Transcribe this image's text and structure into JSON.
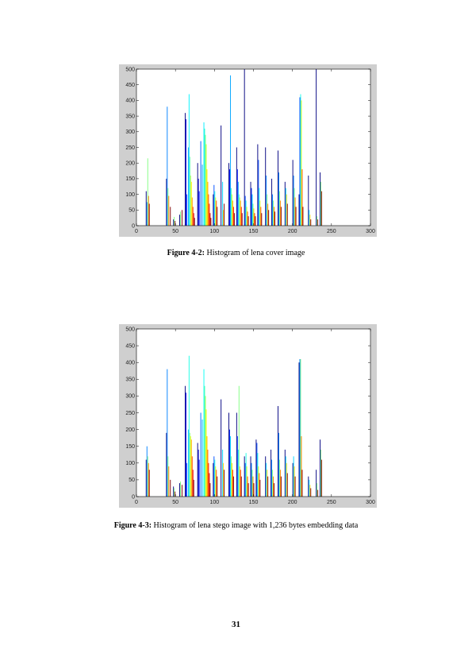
{
  "figures": [
    {
      "caption_label": "Figure 4-2:",
      "caption_text": " Histogram of lena cover image",
      "chart_data": {
        "type": "bar",
        "ylim": [
          0,
          500
        ],
        "xlim": [
          0,
          300
        ],
        "xticks": [
          0,
          50,
          100,
          150,
          200,
          250,
          300
        ],
        "yticks": [
          0,
          50,
          100,
          150,
          200,
          250,
          300,
          350,
          400,
          450,
          500
        ],
        "grid": false,
        "bars": [
          [
            12,
            110
          ],
          [
            13,
            75
          ],
          [
            14,
            215
          ],
          [
            15,
            95
          ],
          [
            16,
            70
          ],
          [
            38,
            150
          ],
          [
            39,
            380
          ],
          [
            40,
            120
          ],
          [
            41,
            95
          ],
          [
            43,
            60
          ],
          [
            47,
            20
          ],
          [
            48,
            28
          ],
          [
            49,
            15
          ],
          [
            55,
            35
          ],
          [
            56,
            45
          ],
          [
            58,
            50
          ],
          [
            62,
            360
          ],
          [
            63,
            340
          ],
          [
            64,
            100
          ],
          [
            66,
            250
          ],
          [
            67,
            420
          ],
          [
            68,
            220
          ],
          [
            69,
            160
          ],
          [
            70,
            140
          ],
          [
            71,
            90
          ],
          [
            72,
            60
          ],
          [
            73,
            40
          ],
          [
            74,
            25
          ],
          [
            78,
            200
          ],
          [
            79,
            150
          ],
          [
            80,
            110
          ],
          [
            82,
            270
          ],
          [
            84,
            195
          ],
          [
            86,
            330
          ],
          [
            87,
            310
          ],
          [
            88,
            290
          ],
          [
            89,
            260
          ],
          [
            90,
            180
          ],
          [
            91,
            140
          ],
          [
            92,
            100
          ],
          [
            93,
            70
          ],
          [
            94,
            40
          ],
          [
            95,
            25
          ],
          [
            98,
            100
          ],
          [
            99,
            130
          ],
          [
            100,
            110
          ],
          [
            101,
            90
          ],
          [
            102,
            80
          ],
          [
            103,
            60
          ],
          [
            108,
            320
          ],
          [
            110,
            140
          ],
          [
            111,
            50
          ],
          [
            112,
            70
          ],
          [
            118,
            200
          ],
          [
            119,
            180
          ],
          [
            120,
            480
          ],
          [
            121,
            120
          ],
          [
            122,
            100
          ],
          [
            123,
            80
          ],
          [
            124,
            60
          ],
          [
            125,
            40
          ],
          [
            128,
            250
          ],
          [
            129,
            180
          ],
          [
            130,
            140
          ],
          [
            131,
            100
          ],
          [
            132,
            90
          ],
          [
            133,
            80
          ],
          [
            134,
            60
          ],
          [
            135,
            40
          ],
          [
            138,
            500
          ],
          [
            139,
            95
          ],
          [
            140,
            80
          ],
          [
            141,
            60
          ],
          [
            142,
            45
          ],
          [
            143,
            30
          ],
          [
            146,
            140
          ],
          [
            147,
            120
          ],
          [
            148,
            100
          ],
          [
            149,
            70
          ],
          [
            150,
            55
          ],
          [
            151,
            40
          ],
          [
            152,
            30
          ],
          [
            155,
            260
          ],
          [
            156,
            210
          ],
          [
            157,
            120
          ],
          [
            158,
            80
          ],
          [
            159,
            60
          ],
          [
            160,
            40
          ],
          [
            165,
            250
          ],
          [
            166,
            160
          ],
          [
            167,
            100
          ],
          [
            168,
            70
          ],
          [
            169,
            50
          ],
          [
            173,
            150
          ],
          [
            174,
            100
          ],
          [
            175,
            80
          ],
          [
            176,
            60
          ],
          [
            177,
            45
          ],
          [
            181,
            240
          ],
          [
            182,
            170
          ],
          [
            183,
            110
          ],
          [
            184,
            80
          ],
          [
            185,
            60
          ],
          [
            190,
            140
          ],
          [
            191,
            120
          ],
          [
            192,
            100
          ],
          [
            193,
            70
          ],
          [
            200,
            210
          ],
          [
            201,
            160
          ],
          [
            202,
            120
          ],
          [
            203,
            90
          ],
          [
            204,
            60
          ],
          [
            208,
            100
          ],
          [
            209,
            410
          ],
          [
            210,
            420
          ],
          [
            211,
            400
          ],
          [
            212,
            180
          ],
          [
            213,
            60
          ],
          [
            220,
            160
          ],
          [
            221,
            50
          ],
          [
            222,
            35
          ],
          [
            223,
            20
          ],
          [
            230,
            500
          ],
          [
            231,
            30
          ],
          [
            232,
            20
          ],
          [
            235,
            170
          ],
          [
            236,
            140
          ],
          [
            237,
            110
          ]
        ]
      }
    },
    {
      "caption_label": "Figure 4-3:",
      "caption_text": " Histogram of lena stego image with 1,236 bytes embedding data",
      "chart_data": {
        "type": "bar",
        "ylim": [
          0,
          500
        ],
        "xlim": [
          0,
          300
        ],
        "xticks": [
          0,
          50,
          100,
          150,
          200,
          250,
          300
        ],
        "yticks": [
          0,
          50,
          100,
          150,
          200,
          250,
          300,
          350,
          400,
          450,
          500
        ],
        "grid": false,
        "bars": [
          [
            12,
            110
          ],
          [
            13,
            150
          ],
          [
            14,
            120
          ],
          [
            15,
            100
          ],
          [
            16,
            80
          ],
          [
            38,
            190
          ],
          [
            39,
            380
          ],
          [
            40,
            120
          ],
          [
            41,
            90
          ],
          [
            43,
            50
          ],
          [
            47,
            30
          ],
          [
            48,
            25
          ],
          [
            49,
            15
          ],
          [
            55,
            40
          ],
          [
            56,
            45
          ],
          [
            58,
            35
          ],
          [
            62,
            330
          ],
          [
            63,
            310
          ],
          [
            64,
            100
          ],
          [
            66,
            200
          ],
          [
            67,
            420
          ],
          [
            68,
            190
          ],
          [
            69,
            180
          ],
          [
            70,
            170
          ],
          [
            71,
            120
          ],
          [
            72,
            80
          ],
          [
            73,
            50
          ],
          [
            78,
            160
          ],
          [
            79,
            140
          ],
          [
            80,
            110
          ],
          [
            82,
            250
          ],
          [
            84,
            230
          ],
          [
            86,
            380
          ],
          [
            87,
            330
          ],
          [
            88,
            300
          ],
          [
            89,
            260
          ],
          [
            90,
            180
          ],
          [
            91,
            140
          ],
          [
            92,
            100
          ],
          [
            93,
            70
          ],
          [
            94,
            40
          ],
          [
            98,
            100
          ],
          [
            99,
            120
          ],
          [
            100,
            110
          ],
          [
            101,
            90
          ],
          [
            102,
            80
          ],
          [
            103,
            60
          ],
          [
            108,
            290
          ],
          [
            110,
            140
          ],
          [
            111,
            100
          ],
          [
            112,
            80
          ],
          [
            118,
            250
          ],
          [
            119,
            200
          ],
          [
            120,
            180
          ],
          [
            121,
            120
          ],
          [
            122,
            100
          ],
          [
            123,
            80
          ],
          [
            124,
            60
          ],
          [
            128,
            250
          ],
          [
            129,
            180
          ],
          [
            130,
            140
          ],
          [
            131,
            330
          ],
          [
            132,
            90
          ],
          [
            133,
            80
          ],
          [
            134,
            60
          ],
          [
            138,
            120
          ],
          [
            139,
            100
          ],
          [
            140,
            130
          ],
          [
            141,
            90
          ],
          [
            142,
            60
          ],
          [
            143,
            40
          ],
          [
            146,
            120
          ],
          [
            147,
            100
          ],
          [
            148,
            80
          ],
          [
            149,
            60
          ],
          [
            150,
            40
          ],
          [
            153,
            170
          ],
          [
            154,
            160
          ],
          [
            155,
            130
          ],
          [
            156,
            90
          ],
          [
            157,
            70
          ],
          [
            158,
            50
          ],
          [
            165,
            120
          ],
          [
            166,
            100
          ],
          [
            167,
            80
          ],
          [
            168,
            60
          ],
          [
            172,
            140
          ],
          [
            173,
            110
          ],
          [
            174,
            80
          ],
          [
            175,
            60
          ],
          [
            176,
            40
          ],
          [
            181,
            270
          ],
          [
            182,
            190
          ],
          [
            183,
            110
          ],
          [
            184,
            80
          ],
          [
            185,
            60
          ],
          [
            190,
            140
          ],
          [
            191,
            120
          ],
          [
            192,
            100
          ],
          [
            193,
            70
          ],
          [
            200,
            100
          ],
          [
            201,
            120
          ],
          [
            202,
            90
          ],
          [
            203,
            60
          ],
          [
            208,
            400
          ],
          [
            209,
            410
          ],
          [
            210,
            410
          ],
          [
            211,
            180
          ],
          [
            212,
            80
          ],
          [
            220,
            60
          ],
          [
            221,
            50
          ],
          [
            222,
            35
          ],
          [
            223,
            25
          ],
          [
            230,
            80
          ],
          [
            231,
            40
          ],
          [
            232,
            20
          ],
          [
            235,
            170
          ],
          [
            236,
            140
          ],
          [
            237,
            110
          ]
        ]
      }
    }
  ],
  "page_number": "31",
  "colors": {
    "frame": "#cfcfcf",
    "plot_bg": "#ffffff"
  }
}
